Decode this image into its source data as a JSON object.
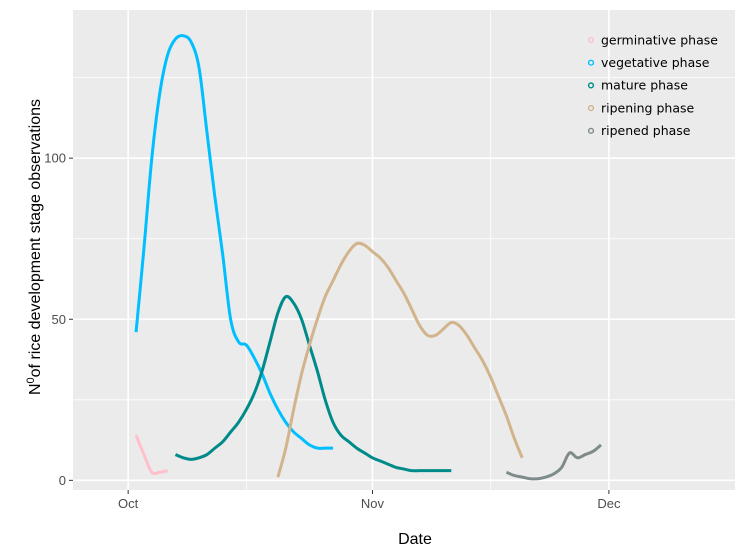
{
  "chart_data": {
    "type": "line",
    "xlabel": "Date",
    "ylabel_base": "N",
    "ylabel_sup": "0",
    "ylabel_rest": "of rice development stage observations",
    "x_ticks": [
      {
        "label": "Oct",
        "value": "2020-10-01"
      },
      {
        "label": "Nov",
        "value": "2020-11-01"
      },
      {
        "label": "Dec",
        "value": "2020-12-01"
      }
    ],
    "x_minor_ticks": [
      "2020-10-16",
      "2020-11-16"
    ],
    "xlim": [
      "2020-09-24",
      "2020-12-17"
    ],
    "y_ticks": [
      0,
      50,
      100
    ],
    "y_minor_ticks": [
      25,
      75,
      125
    ],
    "ylim": [
      -3,
      146
    ],
    "grid": true,
    "legend_position": "top-right",
    "series": [
      {
        "name": "germinative phase",
        "color": "#ffc0cb",
        "points": [
          [
            "2020-10-02",
            14
          ],
          [
            "2020-10-03",
            8
          ],
          [
            "2020-10-04",
            2.5
          ],
          [
            "2020-10-05",
            2.5
          ],
          [
            "2020-10-06",
            3
          ]
        ]
      },
      {
        "name": "vegetative phase",
        "color": "#00bfff",
        "points": [
          [
            "2020-10-02",
            46
          ],
          [
            "2020-10-03",
            72
          ],
          [
            "2020-10-04",
            100
          ],
          [
            "2020-10-05",
            120
          ],
          [
            "2020-10-06",
            132
          ],
          [
            "2020-10-07",
            137
          ],
          [
            "2020-10-08",
            138
          ],
          [
            "2020-10-09",
            136
          ],
          [
            "2020-10-10",
            128
          ],
          [
            "2020-10-11",
            108
          ],
          [
            "2020-10-12",
            88
          ],
          [
            "2020-10-13",
            70
          ],
          [
            "2020-10-14",
            50
          ],
          [
            "2020-10-15",
            43
          ],
          [
            "2020-10-16",
            42
          ],
          [
            "2020-10-17",
            38
          ],
          [
            "2020-10-18",
            33
          ],
          [
            "2020-10-19",
            27
          ],
          [
            "2020-10-20",
            22
          ],
          [
            "2020-10-21",
            18
          ],
          [
            "2020-10-22",
            15
          ],
          [
            "2020-10-23",
            13
          ],
          [
            "2020-10-24",
            11
          ],
          [
            "2020-10-25",
            10
          ],
          [
            "2020-10-26",
            10
          ],
          [
            "2020-10-27",
            10
          ]
        ]
      },
      {
        "name": "mature phase",
        "color": "#008b8b",
        "points": [
          [
            "2020-10-07",
            8
          ],
          [
            "2020-10-08",
            7
          ],
          [
            "2020-10-09",
            6.5
          ],
          [
            "2020-10-10",
            7
          ],
          [
            "2020-10-11",
            8
          ],
          [
            "2020-10-12",
            10
          ],
          [
            "2020-10-13",
            12
          ],
          [
            "2020-10-14",
            15
          ],
          [
            "2020-10-15",
            18
          ],
          [
            "2020-10-16",
            22
          ],
          [
            "2020-10-17",
            27
          ],
          [
            "2020-10-18",
            34
          ],
          [
            "2020-10-19",
            43
          ],
          [
            "2020-10-20",
            52
          ],
          [
            "2020-10-21",
            57
          ],
          [
            "2020-10-22",
            55
          ],
          [
            "2020-10-23",
            50
          ],
          [
            "2020-10-24",
            42
          ],
          [
            "2020-10-25",
            34
          ],
          [
            "2020-10-26",
            25
          ],
          [
            "2020-10-27",
            18
          ],
          [
            "2020-10-28",
            14
          ],
          [
            "2020-10-29",
            12
          ],
          [
            "2020-10-30",
            10
          ],
          [
            "2020-10-31",
            8.5
          ],
          [
            "2020-11-01",
            7
          ],
          [
            "2020-11-02",
            6
          ],
          [
            "2020-11-03",
            5
          ],
          [
            "2020-11-04",
            4
          ],
          [
            "2020-11-05",
            3.5
          ],
          [
            "2020-11-06",
            3
          ],
          [
            "2020-11-07",
            3
          ],
          [
            "2020-11-08",
            3
          ],
          [
            "2020-11-09",
            3
          ],
          [
            "2020-11-10",
            3
          ],
          [
            "2020-11-11",
            3
          ]
        ]
      },
      {
        "name": "ripening phase",
        "color": "#d2b48c",
        "points": [
          [
            "2020-10-20",
            1
          ],
          [
            "2020-10-21",
            10
          ],
          [
            "2020-10-22",
            22
          ],
          [
            "2020-10-23",
            33
          ],
          [
            "2020-10-24",
            42
          ],
          [
            "2020-10-25",
            50
          ],
          [
            "2020-10-26",
            57
          ],
          [
            "2020-10-27",
            62
          ],
          [
            "2020-10-28",
            67
          ],
          [
            "2020-10-29",
            71
          ],
          [
            "2020-10-30",
            73.5
          ],
          [
            "2020-10-31",
            73
          ],
          [
            "2020-11-01",
            71
          ],
          [
            "2020-11-02",
            69
          ],
          [
            "2020-11-03",
            66
          ],
          [
            "2020-11-04",
            62
          ],
          [
            "2020-11-05",
            58
          ],
          [
            "2020-11-06",
            53
          ],
          [
            "2020-11-07",
            48
          ],
          [
            "2020-11-08",
            45
          ],
          [
            "2020-11-09",
            45
          ],
          [
            "2020-11-10",
            47
          ],
          [
            "2020-11-11",
            49
          ],
          [
            "2020-11-12",
            48
          ],
          [
            "2020-11-13",
            45
          ],
          [
            "2020-11-14",
            41
          ],
          [
            "2020-11-15",
            37
          ],
          [
            "2020-11-16",
            32
          ],
          [
            "2020-11-17",
            26
          ],
          [
            "2020-11-18",
            20
          ],
          [
            "2020-11-19",
            13
          ],
          [
            "2020-11-20",
            7
          ]
        ]
      },
      {
        "name": "ripened phase",
        "color": "#7f8b8b",
        "points": [
          [
            "2020-11-18",
            2.5
          ],
          [
            "2020-11-19",
            1.5
          ],
          [
            "2020-11-20",
            1
          ],
          [
            "2020-11-21",
            0.5
          ],
          [
            "2020-11-22",
            0.5
          ],
          [
            "2020-11-23",
            1
          ],
          [
            "2020-11-24",
            2
          ],
          [
            "2020-11-25",
            4
          ],
          [
            "2020-11-26",
            8.5
          ],
          [
            "2020-11-27",
            7
          ],
          [
            "2020-11-28",
            8
          ],
          [
            "2020-11-29",
            9
          ],
          [
            "2020-11-30",
            11
          ]
        ]
      }
    ]
  }
}
